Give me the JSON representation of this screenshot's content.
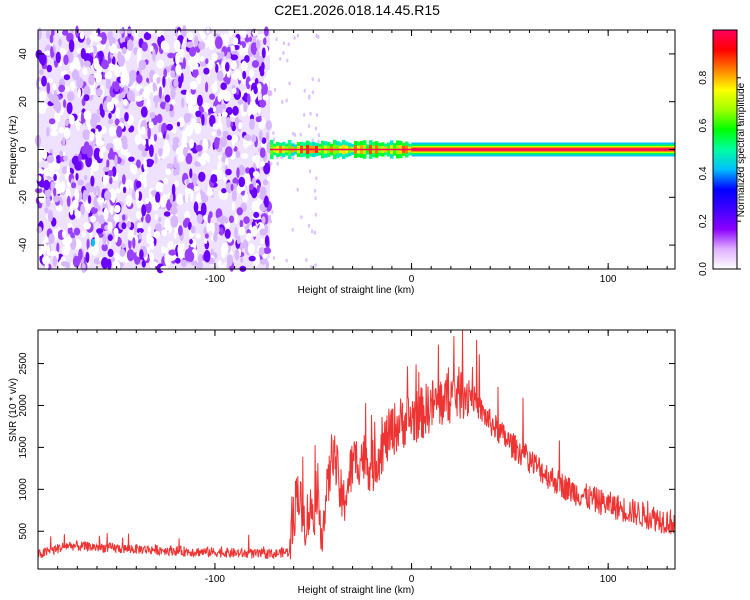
{
  "figure": {
    "title": "C2E1.2026.018.14.45.R15"
  },
  "chart_data": [
    {
      "type": "heatmap",
      "xlabel": "Height of straight line (km)",
      "ylabel": "Frequency (Hz)",
      "xlim": [
        -190,
        134
      ],
      "ylim": [
        -50,
        50
      ],
      "x_ticks": [
        -100,
        0,
        100
      ],
      "y_ticks": [
        -40,
        -20,
        0,
        20,
        40
      ],
      "colorbar": {
        "label": "Normalized spectral amplitude",
        "range": [
          0,
          1
        ],
        "ticks": [
          0.0,
          0.2,
          0.4,
          0.6,
          0.8
        ],
        "colormap": [
          "#ffffff",
          "#e0b0ff",
          "#8b00ff",
          "#4000ff",
          "#0000ff",
          "#00c0ff",
          "#00ffa0",
          "#00ff00",
          "#a0ff00",
          "#ffff00",
          "#ff8000",
          "#ff0000",
          "#ff0060"
        ]
      },
      "regions": [
        {
          "name": "noise",
          "x_range": [
            -190,
            -72
          ],
          "f_range": [
            -50,
            50
          ],
          "amplitude": 0.12
        },
        {
          "name": "carrier",
          "x_range": [
            -72,
            134
          ],
          "f_center": 0,
          "amplitude": 1.0
        }
      ]
    },
    {
      "type": "line",
      "xlabel": "Height of straight line (km)",
      "ylabel": "SNR (10 * v/v)",
      "xlim": [
        -190,
        134
      ],
      "ylim": [
        50,
        2900
      ],
      "x_ticks": [
        -100,
        0,
        100
      ],
      "y_ticks": [
        500,
        1000,
        1500,
        2000,
        2500
      ],
      "line_color": "#ee3333",
      "series": [
        {
          "x": [
            -190,
            -175,
            -160,
            -145,
            -130,
            -115,
            -100,
            -90,
            -80,
            -70,
            -62,
            -58,
            -55,
            -50,
            -45,
            -40,
            -35,
            -30,
            -25,
            -20,
            -15,
            -10,
            -5,
            0,
            5,
            10,
            15,
            20,
            25,
            30,
            35,
            40,
            50,
            60,
            70,
            80,
            90,
            100,
            110,
            120,
            134
          ],
          "values": [
            220,
            330,
            310,
            290,
            280,
            260,
            250,
            240,
            230,
            230,
            260,
            1050,
            600,
            800,
            550,
            1500,
            800,
            1300,
            1400,
            1250,
            1500,
            1700,
            1800,
            1850,
            1900,
            2000,
            2050,
            2100,
            2150,
            2150,
            1950,
            1800,
            1550,
            1350,
            1150,
            1000,
            900,
            820,
            750,
            680,
            600
          ]
        }
      ]
    }
  ]
}
